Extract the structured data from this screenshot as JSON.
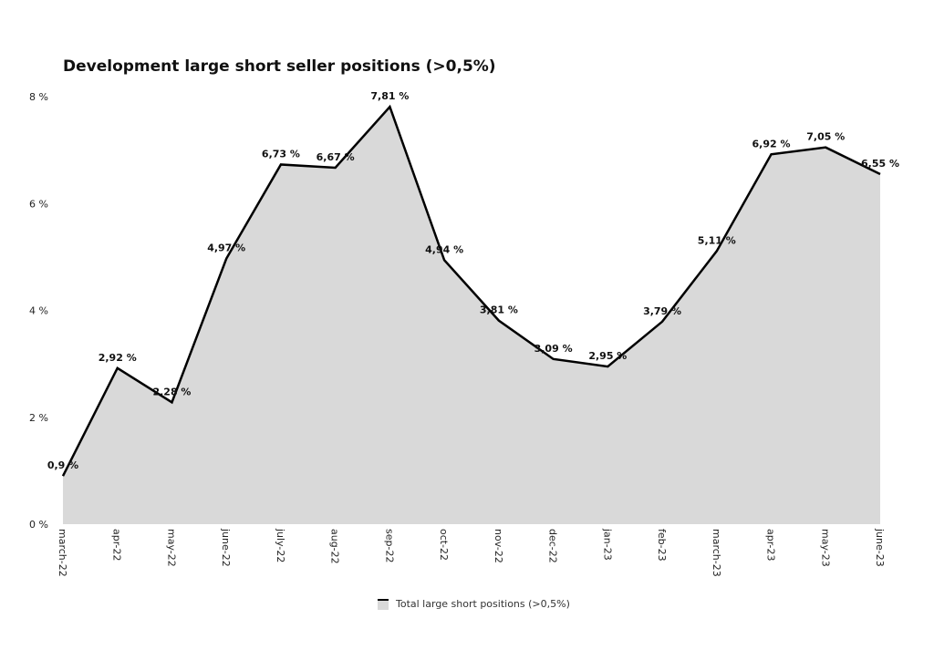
{
  "chart_data": {
    "type": "area",
    "title": "Development large short seller positions (>0,5%)",
    "xlabel": "",
    "ylabel": "",
    "categories": [
      "march-22",
      "apr-22",
      "may-22",
      "june-22",
      "july-22",
      "aug-22",
      "sep-22",
      "oct-22",
      "nov-22",
      "dec-22",
      "jan-23",
      "feb-23",
      "march-23",
      "apr-23",
      "may-23",
      "june-23"
    ],
    "series": [
      {
        "name": "Total large short positions (>0,5%)",
        "values": [
          0.9,
          2.92,
          2.28,
          4.97,
          6.73,
          6.67,
          7.81,
          4.94,
          3.81,
          3.09,
          2.95,
          3.79,
          5.11,
          6.92,
          7.05,
          6.55
        ],
        "labels": [
          "0,9 %",
          "2,92 %",
          "2,28 %",
          "4,97 %",
          "6,73 %",
          "6,67 %",
          "7,81 %",
          "4,94 %",
          "3,81 %",
          "3,09 %",
          "2,95 %",
          "3,79 %",
          "5,11 %",
          "6,92 %",
          "7,05 %",
          "6,55 %"
        ]
      }
    ],
    "ylim": [
      0,
      8
    ],
    "yticks": [
      0,
      2,
      4,
      6,
      8
    ],
    "ytick_labels": [
      "0 %",
      "2 %",
      "4 %",
      "6 %",
      "8 %"
    ],
    "grid": false,
    "legend_position": "bottom-center",
    "colors": {
      "fill": "#d9d9d9",
      "line": "#000000"
    }
  }
}
